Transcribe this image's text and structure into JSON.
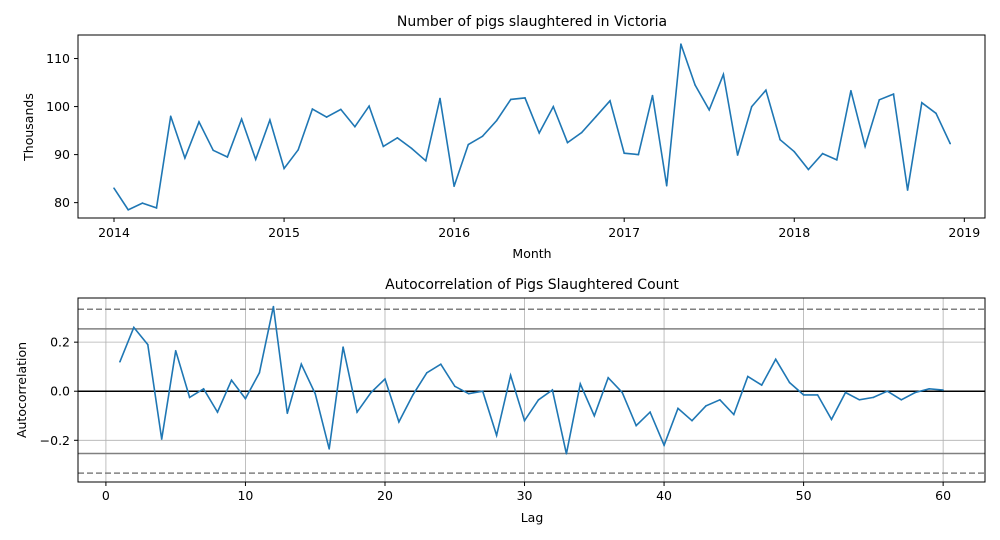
{
  "chart_data": [
    {
      "type": "line",
      "title": "Number of pigs slaughtered in Victoria",
      "xlabel": "Month",
      "ylabel": "Thousands",
      "x_ticks": [
        "2014",
        "2015",
        "2016",
        "2017",
        "2018",
        "2019"
      ],
      "y_ticks": [
        80,
        90,
        100,
        110
      ],
      "ylim": [
        76.8,
        114.9
      ],
      "xlim": [
        "2013-10-15",
        "2019-02-15"
      ],
      "grid": false,
      "color": "#1f77b4",
      "series": [
        {
          "x": [
            "2014-01",
            "2014-02",
            "2014-03",
            "2014-04",
            "2014-05",
            "2014-06",
            "2014-07",
            "2014-08",
            "2014-09",
            "2014-10",
            "2014-11",
            "2014-12",
            "2015-01",
            "2015-02",
            "2015-03",
            "2015-04",
            "2015-05",
            "2015-06",
            "2015-07",
            "2015-08",
            "2015-09",
            "2015-10",
            "2015-11",
            "2015-12",
            "2016-01",
            "2016-02",
            "2016-03",
            "2016-04",
            "2016-05",
            "2016-06",
            "2016-07",
            "2016-08",
            "2016-09",
            "2016-10",
            "2016-11",
            "2016-12",
            "2017-01",
            "2017-02",
            "2017-03",
            "2017-04",
            "2017-05",
            "2017-06",
            "2017-07",
            "2017-08",
            "2017-09",
            "2017-10",
            "2017-11",
            "2017-12",
            "2018-01",
            "2018-02",
            "2018-03",
            "2018-04",
            "2018-05",
            "2018-06",
            "2018-07",
            "2018-08",
            "2018-09",
            "2018-10",
            "2018-11",
            "2018-12"
          ],
          "values": [
            83.0,
            78.5,
            79.9,
            78.9,
            98.0,
            89.3,
            96.8,
            90.9,
            89.5,
            97.4,
            89.0,
            97.2,
            87.1,
            91.0,
            99.5,
            97.8,
            99.4,
            95.8,
            100.1,
            91.7,
            93.5,
            91.3,
            88.7,
            101.7,
            83.4,
            92.1,
            93.8,
            97.1,
            101.5,
            101.8,
            94.5,
            100.0,
            92.5,
            94.6,
            97.9,
            101.2,
            90.3,
            90.0,
            102.3,
            83.5,
            113.0,
            104.5,
            99.3,
            106.7,
            89.9,
            100.0,
            103.4,
            93.1,
            90.6,
            86.9,
            90.2,
            88.9,
            103.3,
            91.7,
            101.4,
            102.6,
            82.6,
            100.8,
            98.6,
            92.3
          ]
        }
      ]
    },
    {
      "type": "line",
      "title": "Autocorrelation of Pigs Slaughtered Count",
      "xlabel": "Lag",
      "ylabel": "Autocorrelation",
      "x_ticks": [
        0,
        10,
        20,
        30,
        40,
        50,
        60
      ],
      "y_ticks": [
        -0.2,
        0.0,
        0.2
      ],
      "y_tick_labels": [
        "−0.2",
        "0.0",
        "0.2"
      ],
      "xlim": [
        -2,
        63
      ],
      "ylim": [
        -0.37,
        0.38
      ],
      "grid": true,
      "color": "#1f77b4",
      "reference_lines": {
        "zero": 0.0,
        "solid_bounds": [
          0.254,
          -0.254
        ],
        "dashed_bounds": [
          0.334,
          -0.334
        ]
      },
      "series": [
        {
          "x": [
            1,
            2,
            3,
            4,
            5,
            6,
            7,
            8,
            9,
            10,
            11,
            12,
            13,
            14,
            15,
            16,
            17,
            18,
            19,
            20,
            21,
            22,
            23,
            24,
            25,
            26,
            27,
            28,
            29,
            30,
            31,
            32,
            33,
            34,
            35,
            36,
            37,
            38,
            39,
            40,
            41,
            42,
            43,
            44,
            45,
            46,
            47,
            48,
            49,
            50,
            51,
            52,
            53,
            54,
            55,
            56,
            57,
            58,
            59,
            60
          ],
          "values": [
            0.12,
            0.26,
            0.19,
            -0.195,
            0.165,
            -0.025,
            0.01,
            -0.085,
            0.045,
            -0.03,
            0.075,
            0.345,
            -0.09,
            0.11,
            -0.01,
            -0.235,
            0.18,
            -0.085,
            -0.005,
            0.05,
            -0.125,
            -0.015,
            0.075,
            0.11,
            0.02,
            -0.01,
            0.0,
            -0.18,
            0.065,
            -0.12,
            -0.035,
            0.005,
            -0.255,
            0.03,
            -0.1,
            0.055,
            -0.005,
            -0.14,
            -0.085,
            -0.22,
            -0.07,
            -0.12,
            -0.06,
            -0.035,
            -0.095,
            0.06,
            0.025,
            0.13,
            0.035,
            -0.015,
            -0.015,
            -0.115,
            -0.005,
            -0.035,
            -0.025,
            0.0,
            -0.035,
            -0.005,
            0.01,
            0.005
          ]
        }
      ]
    }
  ]
}
